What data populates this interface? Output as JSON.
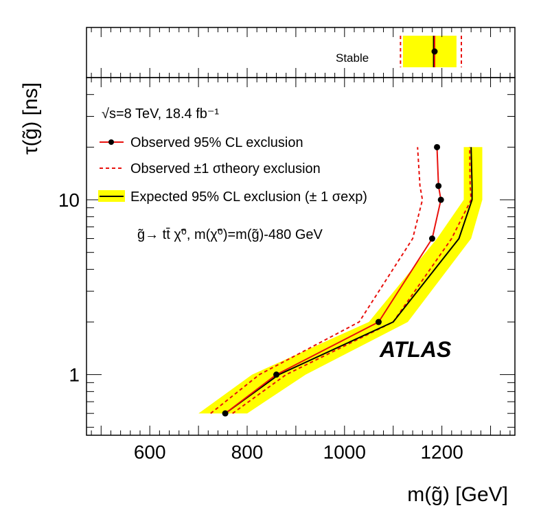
{
  "chart_data": {
    "type": "line",
    "title": "",
    "xlabel": "m(g̃) [GeV]",
    "ylabel": "τ(g̃) [ns]",
    "xlim": [
      470,
      1350
    ],
    "ylim": [
      0.45,
      50
    ],
    "yscale": "log",
    "x_ticks": [
      600,
      800,
      1000,
      1200
    ],
    "x_tick_labels": [
      "600",
      "800",
      "1000",
      "1200"
    ],
    "y_ticks": [
      1,
      10
    ],
    "y_tick_labels": [
      "1",
      "10"
    ],
    "annotations": {
      "energy_lumi": "√s=8 TeV, 18.4 fb⁻¹",
      "process": "g̃→ tt̄ χ̃⁰, m(χ̃⁰)=m(g̃)-480 GeV",
      "experiment": "ATLAS",
      "stable_label": "Stable"
    },
    "legend": [
      {
        "label": "Observed 95% CL exclusion",
        "style": "red line with markers"
      },
      {
        "label": "Observed ±1 σtheory exclusion",
        "style": "red dashed"
      },
      {
        "label": "Expected 95% CL exclusion (± 1 σexp)",
        "style": "black line with yellow band"
      }
    ],
    "series": [
      {
        "name": "Observed",
        "x": [
          755,
          860,
          1070,
          1180,
          1198,
          1193,
          1190
        ],
        "y": [
          0.6,
          1.0,
          2.0,
          6.0,
          10,
          12,
          20
        ]
      },
      {
        "name": "Observed +1 sigma theory",
        "x": [
          725,
          825,
          1030,
          1140,
          1160,
          1155,
          1150
        ],
        "y": [
          0.6,
          1.0,
          2.0,
          6.0,
          10,
          12,
          20
        ]
      },
      {
        "name": "Observed -1 sigma theory",
        "x": [
          770,
          880,
          1100,
          1220,
          1260,
          1258,
          1257
        ],
        "y": [
          0.6,
          1.0,
          2.0,
          6.0,
          10,
          12,
          20
        ]
      },
      {
        "name": "Expected",
        "x": [
          755,
          865,
          1100,
          1235,
          1262,
          1262,
          1260
        ],
        "y": [
          0.6,
          1.0,
          2.0,
          6.0,
          10,
          12,
          20
        ]
      },
      {
        "name": "Expected +1 sigma exp",
        "x": [
          700,
          810,
          1050,
          1190,
          1245,
          1245,
          1245
        ],
        "y": [
          0.6,
          1.0,
          2.0,
          6.0,
          10,
          12,
          20
        ]
      },
      {
        "name": "Expected -1 sigma exp",
        "x": [
          800,
          920,
          1130,
          1260,
          1283,
          1283,
          1283
        ],
        "y": [
          0.6,
          1.0,
          2.0,
          6.0,
          10,
          12,
          20
        ]
      }
    ],
    "stable_limits": {
      "observed": 1185,
      "expected": 1183,
      "theory_low": 1115,
      "theory_high": 1240,
      "exp_band_low": 1120,
      "exp_band_high": 1230
    },
    "colors": {
      "observed": "#e8100c",
      "expected": "#000000",
      "band": "#ffff00"
    }
  }
}
